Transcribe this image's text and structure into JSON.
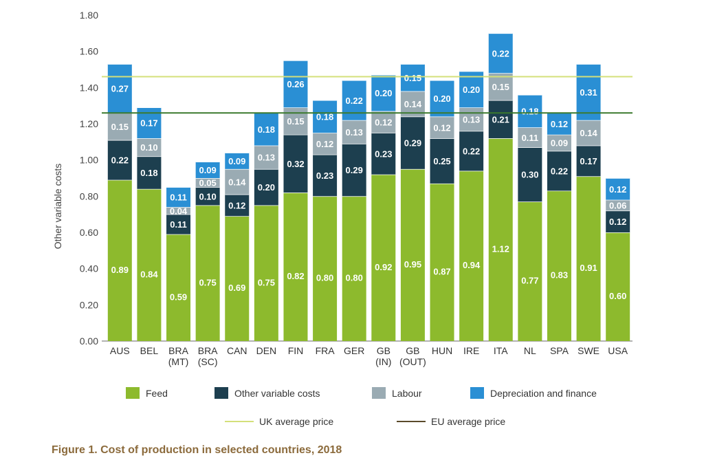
{
  "caption": "Figure 1. Cost of production in selected countries, 2018",
  "chart_data": {
    "type": "stacked-bar",
    "title": "Figure 1. Cost of production in selected countries, 2018",
    "ylabel": "Other variable costs",
    "xlabel": "",
    "ylim": [
      0,
      1.8
    ],
    "yticks": [
      "0.00",
      "0.20",
      "0.40",
      "0.60",
      "0.80",
      "1.00",
      "1.20",
      "1.40",
      "1.60",
      "1.80"
    ],
    "grid": false,
    "legend_position": "bottom",
    "categories": [
      [
        "AUS"
      ],
      [
        "BEL"
      ],
      [
        "BRA",
        "(MT)"
      ],
      [
        "BRA",
        "(SC)"
      ],
      [
        "CAN"
      ],
      [
        "DEN"
      ],
      [
        "FIN"
      ],
      [
        "FRA"
      ],
      [
        "GER"
      ],
      [
        "GB",
        "(IN)"
      ],
      [
        "GB",
        "(OUT)"
      ],
      [
        "HUN"
      ],
      [
        "IRE"
      ],
      [
        "ITA"
      ],
      [
        "NL"
      ],
      [
        "SPA"
      ],
      [
        "SWE"
      ],
      [
        "USA"
      ]
    ],
    "series": [
      {
        "name": "Feed",
        "color": "#8dba2d",
        "values": [
          0.89,
          0.84,
          0.59,
          0.75,
          0.69,
          0.75,
          0.82,
          0.8,
          0.8,
          0.92,
          0.95,
          0.87,
          0.94,
          1.12,
          0.77,
          0.83,
          0.91,
          0.6
        ],
        "labels": [
          "0.89",
          "0.84",
          "0.59",
          "0.75",
          "0.69",
          "0.75",
          "0.82",
          "0.80",
          "0.80",
          "0.92",
          "0.95",
          "0.87",
          "0.94",
          "1.12",
          "0.77",
          "0.83",
          "0.91",
          "0.60"
        ]
      },
      {
        "name": "Other variable costs",
        "color": "#1d3f4f",
        "values": [
          0.22,
          0.18,
          0.11,
          0.1,
          0.12,
          0.2,
          0.32,
          0.23,
          0.29,
          0.23,
          0.29,
          0.25,
          0.22,
          0.21,
          0.3,
          0.22,
          0.17,
          0.12
        ],
        "labels": [
          "0.22",
          "0.18",
          "0.11",
          "0.10",
          "0.12",
          "0.20",
          "0.32",
          "0.23",
          "0.29",
          "0.23",
          "0.29",
          "0.25",
          "0.22",
          "0.21",
          "0.30",
          "0.22",
          "0.17",
          "0.12"
        ]
      },
      {
        "name": "Labour",
        "color": "#9aabb3",
        "values": [
          0.15,
          0.1,
          0.04,
          0.05,
          0.14,
          0.13,
          0.15,
          0.12,
          0.13,
          0.12,
          0.14,
          0.12,
          0.13,
          0.15,
          0.11,
          0.09,
          0.14,
          0.06
        ],
        "labels": [
          "0.15",
          "0.10",
          "0.04",
          "0.05",
          "0.14",
          "0.13",
          "0.15",
          "0.12",
          "0.13",
          "0.12",
          "0.14",
          "0.12",
          "0.13",
          "0.15",
          "0.11",
          "0.09",
          "0.14",
          "0.06"
        ]
      },
      {
        "name": "Depreciation and finance",
        "color": "#2a8fd4",
        "values": [
          0.27,
          0.17,
          0.11,
          0.09,
          0.09,
          0.18,
          0.26,
          0.18,
          0.22,
          0.2,
          0.15,
          0.2,
          0.2,
          0.22,
          0.18,
          0.12,
          0.31,
          0.12
        ],
        "labels": [
          "0.27",
          "0.17",
          "0.11",
          "0.09",
          "0.09",
          "0.18",
          "0.26",
          "0.18",
          "0.22",
          "0.20",
          "0.15",
          "0.20",
          "0.20",
          "0.22",
          "0.18",
          "0.12",
          "0.31",
          "0.12"
        ]
      }
    ],
    "reference_lines": [
      {
        "name": "UK average price",
        "value": 1.46,
        "color": "#d4e07a"
      },
      {
        "name": "EU average price",
        "value": 1.26,
        "color": "#3b7a2e",
        "legend_color": "#5a4a2a"
      }
    ]
  }
}
